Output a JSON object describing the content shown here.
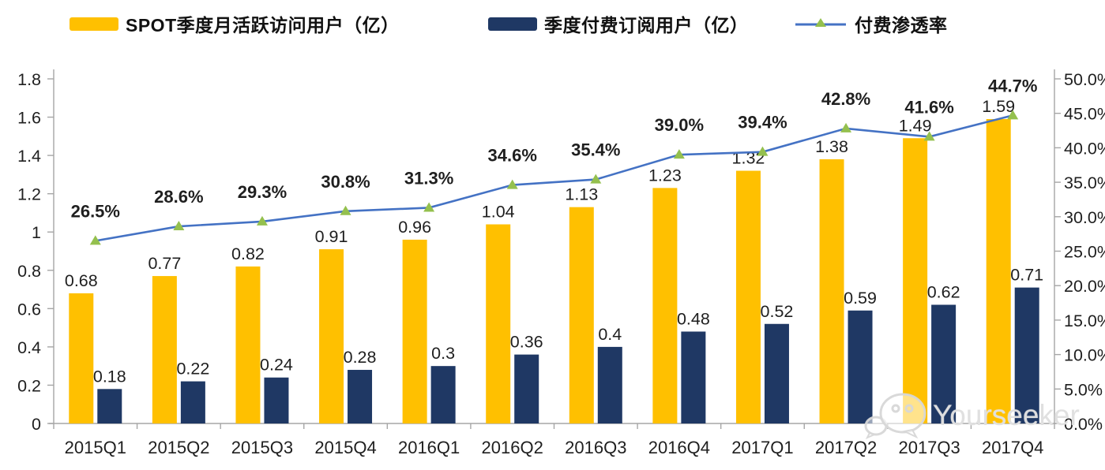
{
  "legend": {
    "items": [
      {
        "label": "SPOT季度月活跃访问用户（亿）",
        "type": "bar",
        "color": "#FFC000"
      },
      {
        "label": "季度付费订阅用户（亿）",
        "type": "bar",
        "color": "#1F3864"
      },
      {
        "label": "付费渗透率",
        "type": "line",
        "color": "#4472C4",
        "marker_color": "#94C04E"
      }
    ]
  },
  "watermark": {
    "label": "Yourseeker",
    "icon": "wechat-icon"
  },
  "chart_data": {
    "type": "bar+line",
    "title": "",
    "categories": [
      "2015Q1",
      "2015Q2",
      "2015Q3",
      "2015Q4",
      "2016Q1",
      "2016Q2",
      "2016Q3",
      "2016Q4",
      "2017Q1",
      "2017Q2",
      "2017Q3",
      "2017Q4"
    ],
    "series": [
      {
        "name": "SPOT季度月活跃访问用户（亿）",
        "type": "bar",
        "axis": "left",
        "color": "#FFC000",
        "values": [
          0.68,
          0.77,
          0.82,
          0.91,
          0.96,
          1.04,
          1.13,
          1.23,
          1.32,
          1.38,
          1.49,
          1.59
        ],
        "labels": [
          "0.68",
          "0.77",
          "0.82",
          "0.91",
          "0.96",
          "1.04",
          "1.13",
          "1.23",
          "1.32",
          "1.38",
          "1.49",
          "1.59"
        ]
      },
      {
        "name": "季度付费订阅用户（亿）",
        "type": "bar",
        "axis": "left",
        "color": "#1F3864",
        "values": [
          0.18,
          0.22,
          0.24,
          0.28,
          0.3,
          0.36,
          0.4,
          0.48,
          0.52,
          0.59,
          0.62,
          0.71
        ],
        "labels": [
          "0.18",
          "0.22",
          "0.24",
          "0.28",
          "0.3",
          "0.36",
          "0.4",
          "0.48",
          "0.52",
          "0.59",
          "0.62",
          "0.71"
        ]
      },
      {
        "name": "付费渗透率",
        "type": "line",
        "axis": "right",
        "color": "#4472C4",
        "marker": "triangle",
        "marker_color": "#94C04E",
        "values": [
          26.5,
          28.6,
          29.3,
          30.8,
          31.3,
          34.6,
          35.4,
          39.0,
          39.4,
          42.8,
          41.6,
          44.7
        ],
        "labels": [
          "26.5%",
          "28.6%",
          "29.3%",
          "30.8%",
          "31.3%",
          "34.6%",
          "35.4%",
          "39.0%",
          "39.4%",
          "42.8%",
          "41.6%",
          "44.7%"
        ]
      }
    ],
    "left_axis": {
      "min": 0,
      "max": 1.8,
      "tick_step": 0.2,
      "tick_labels": [
        "0",
        "0.2",
        "0.4",
        "0.6",
        "0.8",
        "1",
        "1.2",
        "1.4",
        "1.6",
        "1.8"
      ]
    },
    "right_axis": {
      "min": 0,
      "max": 50,
      "tick_step": 5,
      "unit": "%",
      "tick_labels": [
        "0.0%",
        "5.0%",
        "10.0%",
        "15.0%",
        "20.0%",
        "25.0%",
        "30.0%",
        "35.0%",
        "40.0%",
        "45.0%",
        "50.0%"
      ]
    },
    "grid": false,
    "legend_position": "top",
    "axis_style": {
      "line_color": "#a6a6a6",
      "text_color": "#1f1f1f"
    }
  }
}
